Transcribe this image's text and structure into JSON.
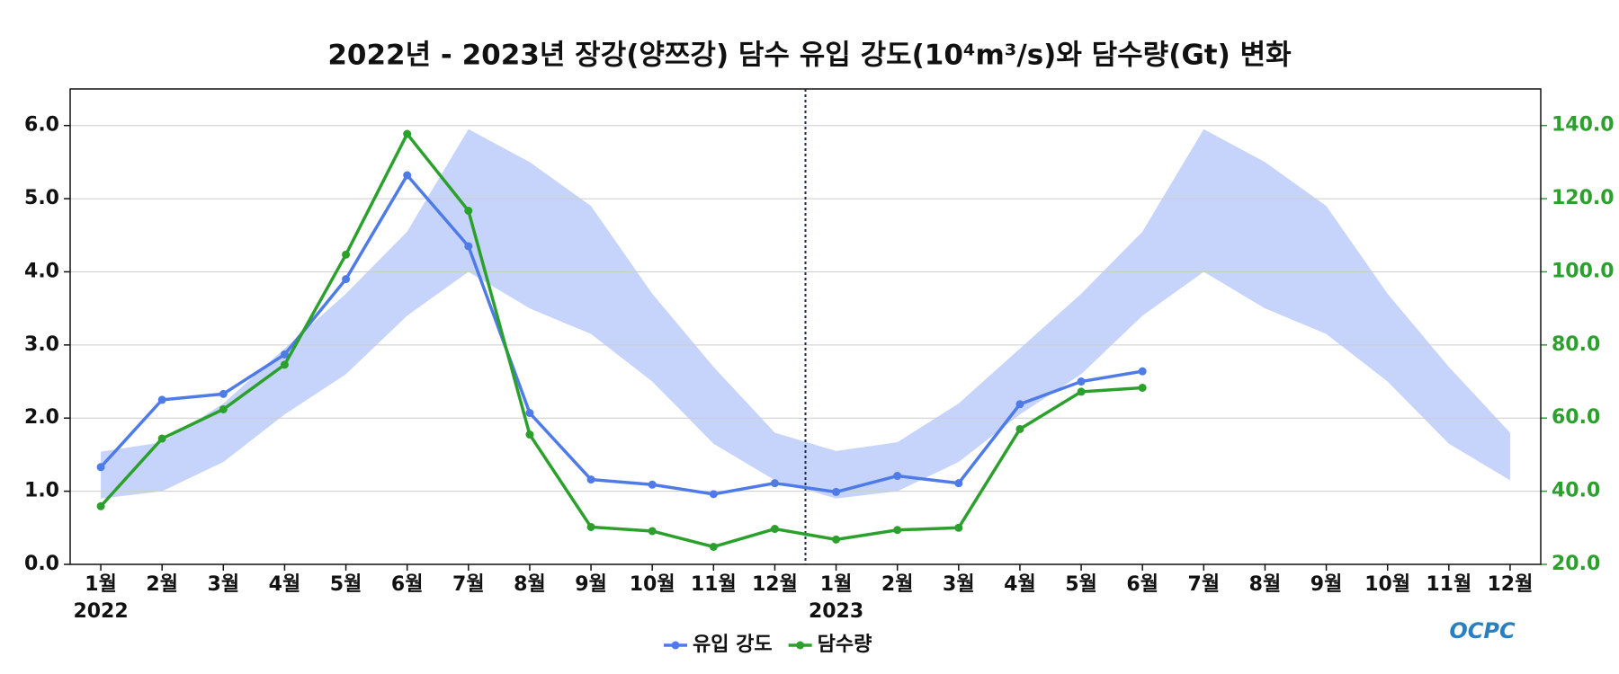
{
  "chart_data": {
    "type": "line",
    "title": "2022년 - 2023년 장강(양쯔강) 담수 유입 강도(10⁴m³/s)와 담수량(Gt) 변화",
    "categories": [
      "1월",
      "2월",
      "3월",
      "4월",
      "5월",
      "6월",
      "7월",
      "8월",
      "9월",
      "10월",
      "11월",
      "12월",
      "1월",
      "2월",
      "3월",
      "4월",
      "5월",
      "6월",
      "7월",
      "8월",
      "9월",
      "10월",
      "11월",
      "12월"
    ],
    "year_labels": [
      "2022",
      "2023"
    ],
    "series": [
      {
        "name": "유입 강도",
        "color": "#4f7be8",
        "values": [
          1.33,
          2.25,
          2.33,
          2.87,
          3.9,
          5.32,
          4.35,
          2.07,
          1.16,
          1.09,
          0.96,
          1.11,
          0.99,
          1.21,
          1.11,
          2.19,
          2.5,
          2.64,
          null,
          null,
          null,
          null,
          null,
          null
        ]
      },
      {
        "name": "담수량",
        "color": "#2ca02c",
        "axis": "y2",
        "values": [
          35.9,
          54.4,
          62.4,
          74.6,
          104.7,
          137.7,
          116.7,
          55.5,
          30.2,
          29.1,
          24.8,
          29.7,
          26.8,
          29.4,
          30.0,
          57.0,
          67.2,
          68.3,
          null,
          null,
          null,
          null,
          null,
          null
        ]
      }
    ],
    "band": {
      "color": "#c6d4fb",
      "lower": [
        0.9,
        1.0,
        1.4,
        2.05,
        2.6,
        3.4,
        4.0,
        3.5,
        3.15,
        2.5,
        1.65,
        1.15,
        0.9,
        1.0,
        1.4,
        2.05,
        2.6,
        3.4,
        4.0,
        3.5,
        3.15,
        2.5,
        1.65,
        1.15
      ],
      "upper": [
        1.54,
        1.67,
        2.2,
        2.95,
        3.7,
        4.55,
        5.95,
        5.5,
        4.9,
        3.7,
        2.7,
        1.8,
        1.55,
        1.67,
        2.2,
        2.95,
        3.7,
        4.55,
        5.95,
        5.5,
        4.9,
        3.7,
        2.7,
        1.8
      ]
    },
    "ylim": [
      0,
      6.5
    ],
    "yticks": [
      {
        "value": 0,
        "label": "0.0"
      },
      {
        "value": 1,
        "label": "1.0"
      },
      {
        "value": 2,
        "label": "2.0"
      },
      {
        "value": 3,
        "label": "3.0"
      },
      {
        "value": 4,
        "label": "4.0"
      },
      {
        "value": 5,
        "label": "5.0"
      },
      {
        "value": 6,
        "label": "6.0"
      }
    ],
    "y2lim": [
      20,
      150
    ],
    "y2ticks": [
      {
        "value": 20,
        "label": "20.0"
      },
      {
        "value": 40,
        "label": "40.0"
      },
      {
        "value": 60,
        "label": "60.0"
      },
      {
        "value": 80,
        "label": "80.0"
      },
      {
        "value": 100,
        "label": "100.0"
      },
      {
        "value": 120,
        "label": "120.0"
      },
      {
        "value": 140,
        "label": "140.0"
      }
    ],
    "grid": true,
    "legend": "bottom",
    "logo": "OCPC"
  }
}
